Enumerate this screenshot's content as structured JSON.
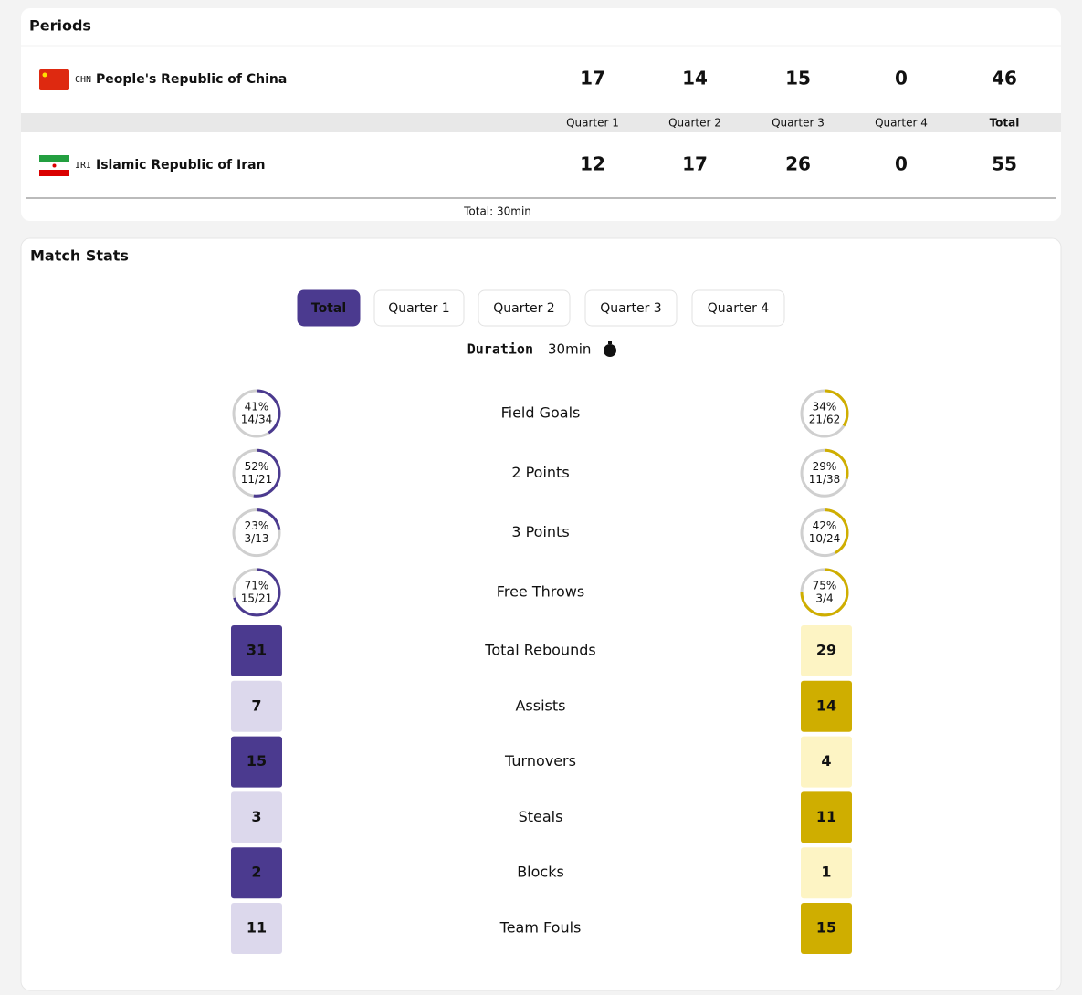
{
  "periods": {
    "title": "Periods",
    "columns": [
      "Quarter 1",
      "Quarter 2",
      "Quarter 3",
      "Quarter 4",
      "Total"
    ],
    "teams": [
      {
        "code": "CHN",
        "name": "People's Republic of China",
        "scores": [
          17,
          14,
          15,
          0,
          46
        ]
      },
      {
        "code": "IRI",
        "name": "Islamic Republic of Iran",
        "scores": [
          12,
          17,
          26,
          0,
          55
        ]
      }
    ],
    "footer": "Total: 30min"
  },
  "match_stats": {
    "title": "Match Stats",
    "tabs": [
      "Total",
      "Quarter 1",
      "Quarter 2",
      "Quarter 3",
      "Quarter 4"
    ],
    "duration_label": "Duration",
    "duration_value": "30min",
    "shooting": [
      {
        "name": "Field Goals",
        "home": {
          "value": 41,
          "label": "41%",
          "made": "14/34"
        },
        "away": {
          "value": 34,
          "label": "34%",
          "made": "21/62"
        }
      },
      {
        "name": "2 Points",
        "home": {
          "value": 52,
          "label": "52%",
          "made": "11/21"
        },
        "away": {
          "value": 29,
          "label": "29%",
          "made": "11/38"
        }
      },
      {
        "name": "3 Points",
        "home": {
          "value": 23,
          "label": "23%",
          "made": "3/13"
        },
        "away": {
          "value": 42,
          "label": "42%",
          "made": "10/24"
        }
      },
      {
        "name": "Free Throws",
        "home": {
          "value": 71,
          "label": "71%",
          "made": "15/21"
        },
        "away": {
          "value": 75,
          "label": "75%",
          "made": "3/4"
        }
      }
    ],
    "counts": [
      {
        "name": "Total Rebounds",
        "home": 31,
        "away": 29
      },
      {
        "name": "Assists",
        "home": 7,
        "away": 14
      },
      {
        "name": "Turnovers",
        "home": 15,
        "away": 4
      },
      {
        "name": "Steals",
        "home": 3,
        "away": 11
      },
      {
        "name": "Blocks",
        "home": 2,
        "away": 1
      },
      {
        "name": "Team Fouls",
        "home": 11,
        "away": 15
      }
    ]
  }
}
